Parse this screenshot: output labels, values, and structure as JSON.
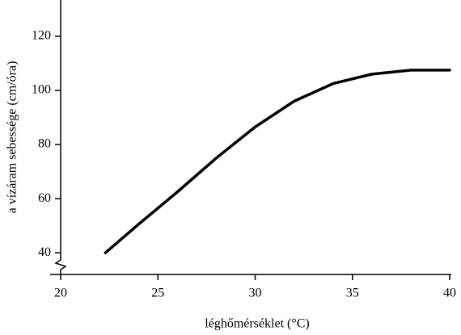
{
  "chart_data": {
    "type": "line",
    "x_label": "léghőmérséklet (°C)",
    "y_label": "a vízáram sebessége (cm/óra)",
    "x": [
      22.3,
      24,
      26,
      28,
      30,
      32,
      34,
      36,
      38,
      40
    ],
    "series": [
      {
        "color": "#000000",
        "values": [
          40,
          50.5,
          62.5,
          75,
          86.5,
          96,
          102.5,
          106,
          107.5,
          107.5
        ]
      }
    ],
    "xlim": [
      20,
      40
    ],
    "xticks": [
      20,
      25,
      30,
      35,
      40
    ],
    "ylim": [
      32,
      133.4
    ],
    "yticks": [
      40,
      60,
      80,
      100,
      120
    ],
    "y_axis_break": true
  }
}
